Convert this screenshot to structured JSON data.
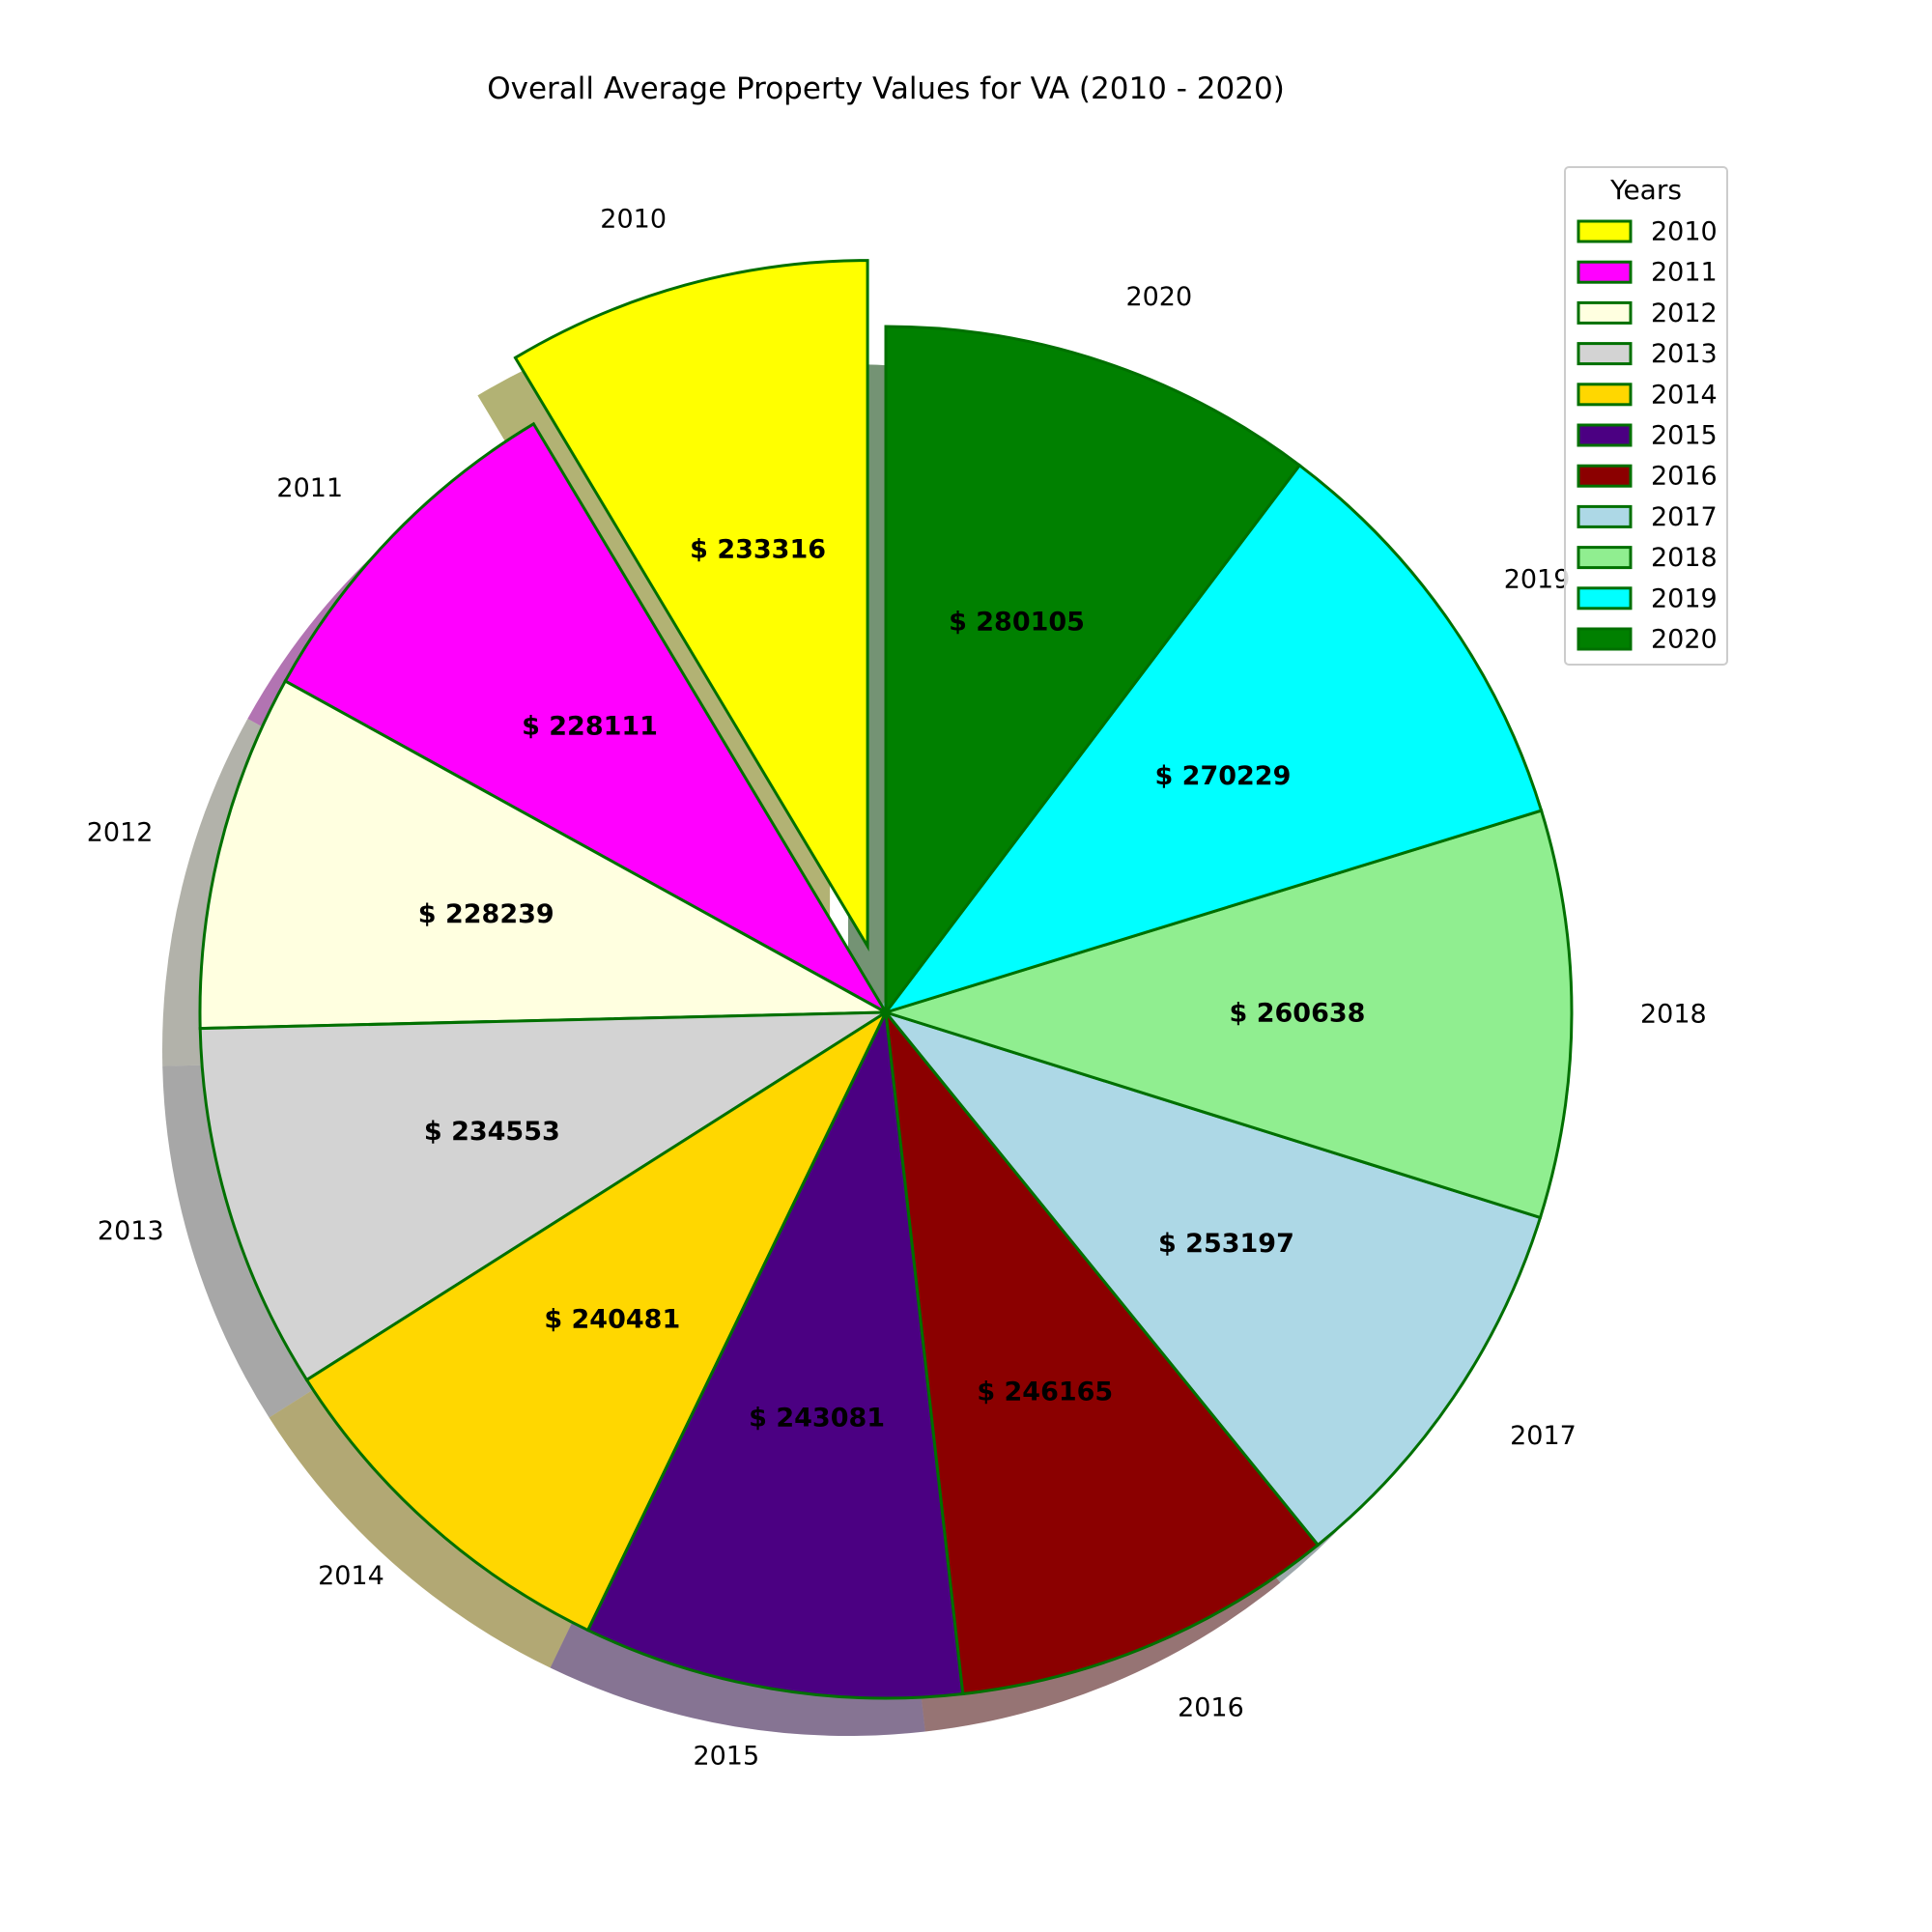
{
  "chart_data": {
    "type": "pie",
    "title": "Overall Average Property Values for VA (2010 - 2020)",
    "value_prefix": "$ ",
    "shadow": true,
    "start_angle": 90,
    "direction": "counterclockwise",
    "exploded": [
      "2010"
    ],
    "edge_color": "#007000",
    "slices": [
      {
        "label": "2010",
        "value": 233316,
        "color": "#ffff00"
      },
      {
        "label": "2011",
        "value": 228111,
        "color": "#ff00ff"
      },
      {
        "label": "2012",
        "value": 228239,
        "color": "#ffffe0"
      },
      {
        "label": "2013",
        "value": 234553,
        "color": "#d3d3d3"
      },
      {
        "label": "2014",
        "value": 240481,
        "color": "#ffd700"
      },
      {
        "label": "2015",
        "value": 243081,
        "color": "#4b0082"
      },
      {
        "label": "2016",
        "value": 246165,
        "color": "#8b0000"
      },
      {
        "label": "2017",
        "value": 253197,
        "color": "#add8e6"
      },
      {
        "label": "2018",
        "value": 260638,
        "color": "#90ee90"
      },
      {
        "label": "2019",
        "value": 270229,
        "color": "#00ffff"
      },
      {
        "label": "2020",
        "value": 280105,
        "color": "#008000"
      }
    ],
    "legend": {
      "title": "Years",
      "position": "top-right"
    }
  }
}
